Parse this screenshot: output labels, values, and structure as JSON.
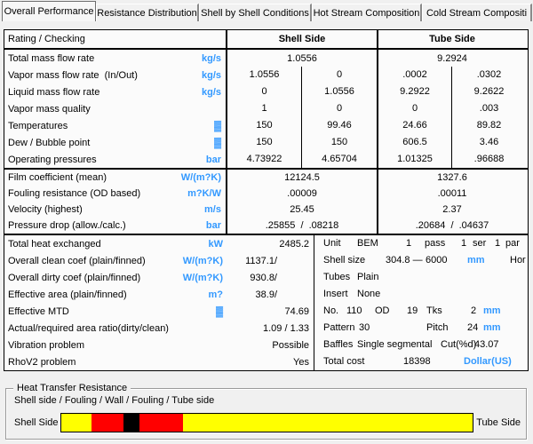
{
  "tabs": [
    {
      "label": "Overall Performance",
      "selected": true
    },
    {
      "label": "Resistance Distribution",
      "selected": false
    },
    {
      "label": "Shell by Shell Conditions",
      "selected": false
    },
    {
      "label": "Hot Stream Composition",
      "selected": false
    },
    {
      "label": "Cold Stream Compositi",
      "selected": false
    }
  ],
  "table": {
    "header": {
      "label": "Rating / Checking",
      "shell": "Shell Side",
      "tube": "Tube Side"
    },
    "s1": [
      {
        "label": "Total mass flow rate",
        "unit": "kg/s",
        "shell": "1.0556",
        "tube": "9.2924"
      },
      {
        "label": "Vapor mass flow rate  (In/Out)",
        "unit": "kg/s",
        "shell_in": "1.0556",
        "shell_out": "0",
        "tube_in": ".0002",
        "tube_out": ".0302"
      },
      {
        "label": "Liquid mass flow rate",
        "unit": "kg/s",
        "shell_in": "0",
        "shell_out": "1.0556",
        "tube_in": "9.2922",
        "tube_out": "9.2622"
      },
      {
        "label": "Vapor mass quality",
        "unit": "",
        "shell_in": "1",
        "shell_out": "0",
        "tube_in": "0",
        "tube_out": ".003"
      },
      {
        "label": "Temperatures",
        "unit": "▓",
        "shell_in": "150",
        "shell_out": "99.46",
        "tube_in": "24.66",
        "tube_out": "89.82"
      },
      {
        "label": "Dew / Bubble point",
        "unit": "▓",
        "shell_in": "150",
        "shell_out": "150",
        "tube_in": "606.5",
        "tube_out": "3.46"
      },
      {
        "label": "Operating pressures",
        "unit": "bar",
        "shell_in": "4.73922",
        "shell_out": "4.65704",
        "tube_in": "1.01325",
        "tube_out": ".96688"
      }
    ],
    "s2": [
      {
        "label": "Film coefficient (mean)",
        "unit": "W/(m?K)",
        "shell": "12124.5",
        "tube": "1327.6"
      },
      {
        "label": "Fouling resistance (OD based)",
        "unit": "m?K/W",
        "shell": ".00009",
        "tube": ".00011"
      },
      {
        "label": "Velocity (highest)",
        "unit": "m/s",
        "shell": "25.45",
        "tube": "2.37"
      },
      {
        "label": "Pressure drop (allow./calc.)",
        "unit": "bar",
        "shell": ".25855  /  .08218",
        "tube": ".20684  /  .04637"
      }
    ],
    "s3": [
      {
        "label": "Total heat exchanged",
        "unit": "kW",
        "value": "2485.2"
      },
      {
        "label": "Overall clean coef (plain/finned)",
        "unit": "W/(m?K)",
        "value": "1137.1/"
      },
      {
        "label": "Overall dirty coef (plain/finned)",
        "unit": "W/(m?K)",
        "value": "930.8/"
      },
      {
        "label": "Effective area (plain/finned)",
        "unit": "m?",
        "value": "38.9/"
      },
      {
        "label": "Effective MTD",
        "unit": "▓",
        "value": "74.69"
      },
      {
        "label": "Actual/required area ratio(dirty/clean)",
        "unit": "",
        "value": "1.09   /   1.33"
      },
      {
        "label": "Vibration problem",
        "unit": "",
        "value": "Possible"
      },
      {
        "label": "RhoV2 problem",
        "unit": "",
        "value": "Yes"
      }
    ]
  },
  "info": {
    "unit_label": "Unit",
    "unit_type": "BEM",
    "passes_count": "1",
    "passes_label": "pass",
    "series_count": "1",
    "series_label": "ser",
    "parallel_count": "1",
    "parallel_label": "par",
    "shell_size_label": "Shell size",
    "shell_size_dia": "304.8 —",
    "shell_size_len": "6000",
    "shell_size_unit": "mm",
    "orientation": "Hor",
    "tubes_label": "Tubes",
    "tubes_type": "Plain",
    "insert_label": "Insert",
    "insert_type": "None",
    "no_label": "No.",
    "no_value": "110",
    "od_label": "OD",
    "od_value": "19",
    "tks_label": "Tks",
    "tks_value": "2",
    "tks_unit": "mm",
    "pattern_label": "Pattern",
    "pattern_value": "30",
    "pitch_label": "Pitch",
    "pitch_value": "24",
    "pitch_unit": "mm",
    "baffles_label": "Baffles",
    "baffles_type": "Single segmental",
    "cut_label": "Cut(%d)",
    "cut_value": "43.07",
    "total_cost_label": "Total cost",
    "total_cost_value": "18398",
    "total_cost_currency": "Dollar(US)"
  },
  "resistance": {
    "group_title": "Heat Transfer Resistance",
    "legend": "Shell side / Fouling / Wall / Fouling / Tube side",
    "left_label": "Shell Side",
    "right_label": "Tube Side",
    "colors": {
      "shell": "#FFFF00",
      "fouling": "#FF0000",
      "wall": "#000000"
    },
    "segments": [
      {
        "name": "shell-side",
        "color": "#FFFF00",
        "pct": 7.2
      },
      {
        "name": "shell-fouling",
        "color": "#FF0000",
        "pct": 7.9
      },
      {
        "name": "wall",
        "color": "#000000",
        "pct": 3.8
      },
      {
        "name": "tube-fouling",
        "color": "#FF0000",
        "pct": 10.6
      },
      {
        "name": "tube-side",
        "color": "#FFFF00",
        "pct": 70.5
      }
    ]
  }
}
